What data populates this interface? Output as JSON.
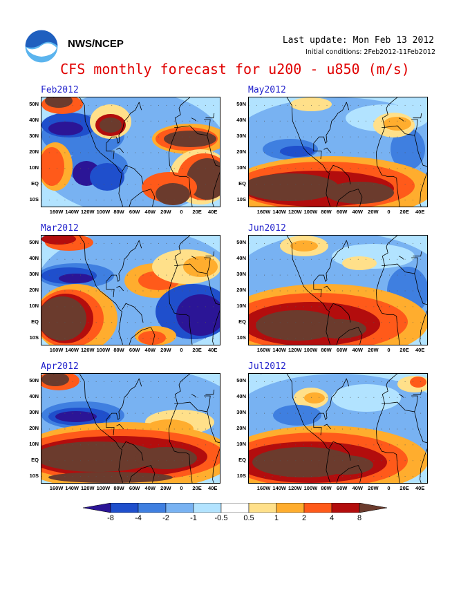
{
  "header": {
    "org": "NWS/NCEP",
    "last_update": "Last update: Mon Feb 13 2012",
    "initial_conditions": "Initial conditions: 2Feb2012-11Feb2012",
    "title": "CFS monthly forecast for u200 - u850 (m/s)"
  },
  "logo": {
    "name": "noaa-logo",
    "colors": [
      "#1f5fbf",
      "#ffffff",
      "#5bb4ee"
    ]
  },
  "chart_data": {
    "type": "heatmap",
    "variable": "u200 - u850",
    "units": "m/s",
    "y_ticks": [
      "50N",
      "40N",
      "30N",
      "20N",
      "10N",
      "EQ",
      "10S"
    ],
    "x_ticks": [
      "160W",
      "140W",
      "120W",
      "100W",
      "80W",
      "60W",
      "40W",
      "20W",
      "0",
      "20E",
      "40E"
    ],
    "colorbar": {
      "levels": [
        "-8",
        "-4",
        "-2",
        "-1",
        "-0.5",
        "0.5",
        "1",
        "2",
        "4",
        "8"
      ],
      "colors": [
        "#2b1596",
        "#1f4fcc",
        "#3f7fe0",
        "#78b2f2",
        "#b2e3ff",
        "#ffffff",
        "#ffe08a",
        "#ffad2e",
        "#ff5a1a",
        "#b30d0d",
        "#6b3b2d"
      ]
    },
    "panels": [
      {
        "title": "Feb2012",
        "pattern": "positive shear (4 to >8) over eastern Pacific 40N, Atlantic 20-30N and Africa/Indian Ocean near equator; negative shear (-4 to <-8) over eastern Pacific 20-30N and central America tropics"
      },
      {
        "title": "May2012",
        "pattern": "strong positive shear (>8) across tropical Pacific to South America 0-10S; weak negative shear over subtropics"
      },
      {
        "title": "Mar2012",
        "pattern": "positive shear (>8) over eastern Pacific tropics and 50N; strong negative shear (<-8) over northern Africa/Arabia 10N-30N"
      },
      {
        "title": "Jun2012",
        "pattern": "positive shear (>8) across tropical Pacific into South America EQ-10S; weak negative shear north of 20N"
      },
      {
        "title": "Apr2012",
        "pattern": "broad positive shear (>8) band 0-10N from Pacific through Africa; negative shear (<-8) over Pacific 20-30N"
      },
      {
        "title": "Jul2012",
        "pattern": "positive shear (>8) over tropical Pacific and South America EQ-10S; mixed weak values north of 20N"
      }
    ]
  }
}
